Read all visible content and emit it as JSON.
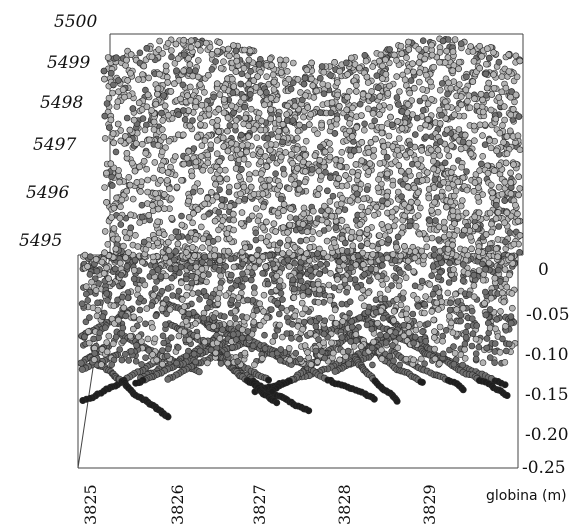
{
  "chart_data": {
    "type": "scatter",
    "title": "",
    "xlabel": "",
    "ylabel": "",
    "zlabel": "globina (m)",
    "x_ticks": [
      "3825",
      "3826",
      "3827",
      "3828",
      "3829"
    ],
    "y_ticks": [
      "5495",
      "5496",
      "5497",
      "5498",
      "5499",
      "5500"
    ],
    "z_ticks": [
      "0",
      "-0.05",
      "-0.10",
      "-0.15",
      "-0.20",
      "-0.25"
    ],
    "xlim": [
      3825,
      3830
    ],
    "ylim": [
      5495,
      5500
    ],
    "zlim": [
      -0.25,
      0
    ],
    "grid": false,
    "legend": "none",
    "series": [
      {
        "description_color": "#b4b4b4",
        "depth_band": [
          -0.02,
          0
        ],
        "density": "dense"
      },
      {
        "description_color": "#1e1e1e",
        "depth_band": [
          -0.22,
          -0.05
        ],
        "density": "sparse tracks"
      }
    ],
    "marker_colors": {
      "surface": "#b4b4b4",
      "mid": "#6e6e6e",
      "deep": "#1e1e1e",
      "outline": "#2a2a2a"
    }
  }
}
